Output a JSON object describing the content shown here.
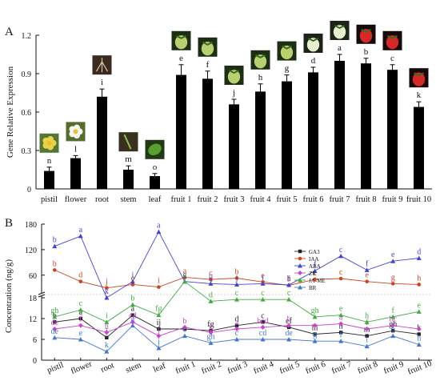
{
  "chart_data": [
    {
      "panel": "A",
      "type": "bar",
      "ylabel": "Gene Relative Expression",
      "ylim": [
        0,
        1.2
      ],
      "yticks": [
        "0",
        "0.3",
        "0.6",
        "0.9",
        "1.2"
      ],
      "categories": [
        "pistil",
        "flower",
        "root",
        "stem",
        "leaf",
        "fruit 1",
        "fruit 2",
        "fruit 3",
        "fruit 4",
        "fruit 5",
        "fruit 6",
        "fruit 7",
        "fruit 8",
        "fruit 9",
        "fruit 10"
      ],
      "values": [
        0.14,
        0.24,
        0.72,
        0.15,
        0.1,
        0.89,
        0.86,
        0.66,
        0.76,
        0.84,
        0.91,
        1.0,
        0.98,
        0.93,
        0.64
      ],
      "errors": [
        0.03,
        0.02,
        0.06,
        0.03,
        0.02,
        0.08,
        0.06,
        0.04,
        0.06,
        0.05,
        0.04,
        0.05,
        0.04,
        0.04,
        0.04
      ],
      "letters": [
        "n",
        "l",
        "i",
        "m",
        "o",
        "e",
        "f",
        "j",
        "h",
        "g",
        "d",
        "a",
        "b",
        "c",
        "k"
      ],
      "photo_icons": [
        "pistil-flower-icon",
        "white-flower-icon",
        "root-icon",
        "stem-icon",
        "leaf-icon",
        "green-fruit-icon",
        "green-fruit-icon",
        "green-fruit-icon",
        "green-fruit-icon",
        "green-fruit-icon",
        "white-fruit-icon",
        "white-fruit-icon",
        "red-fruit-icon",
        "red-fruit-icon",
        "red-fruit-icon"
      ]
    },
    {
      "panel": "B",
      "type": "line",
      "ylabel": "Concentration (ng/g)",
      "yticks_lower": [
        "0",
        "6",
        "12",
        "18"
      ],
      "yticks_upper": [
        "60",
        "120",
        "180"
      ],
      "axis_break": [
        18,
        20
      ],
      "categories": [
        "pistil",
        "flower",
        "root",
        "stem",
        "leaf",
        "fruit 1",
        "fruit 2",
        "fruit 3",
        "fruit 4",
        "fruit 5",
        "fruit 6",
        "fruit 7",
        "fruit 8",
        "fruit 9",
        "fruit 10"
      ],
      "legend_position": "top-right",
      "series": [
        {
          "name": "GA3",
          "color": "#222222",
          "marker": "square",
          "values": [
            11.0,
            12.0,
            6.5,
            13.0,
            9.0,
            9.0,
            8.5,
            10.0,
            11.0,
            9.5,
            7.5,
            8.0,
            7.0,
            8.5,
            7.5
          ],
          "letters": [
            "b",
            "a",
            "i",
            "a",
            "ij",
            "",
            "fg",
            "d",
            "c",
            "ef",
            "hi",
            "h",
            "m",
            "gh",
            "k"
          ]
        },
        {
          "name": "IAA",
          "color": "#cc4422",
          "marker": "circle",
          "values": [
            72,
            45,
            30,
            38,
            32,
            55,
            50,
            53,
            44,
            36,
            50,
            52,
            45,
            40,
            38
          ],
          "letters": [
            "b",
            "d",
            "j",
            "e",
            "i",
            "a",
            "c",
            "b",
            "e",
            "f",
            "c",
            "c",
            "e",
            "g",
            "h"
          ]
        },
        {
          "name": "ABA",
          "color": "#4444cc",
          "marker": "triangle",
          "values": [
            128,
            152,
            18,
            45,
            162,
            45,
            40,
            38,
            40,
            37,
            70,
            105,
            72,
            93,
            100
          ],
          "letters": [
            "b",
            "a",
            "k",
            "i",
            "a",
            "g",
            "ij",
            "j",
            "i",
            "h",
            "f",
            "c",
            "f",
            "e",
            "d"
          ]
        },
        {
          "name": "ZR",
          "color": "#cc44cc",
          "marker": "diamond",
          "values": [
            9.0,
            10.0,
            8.0,
            11.0,
            7.0,
            9.5,
            8.0,
            9.0,
            9.5,
            10.0,
            10.0,
            10.5,
            9.0,
            10.0,
            9.0
          ],
          "letters": [
            "de",
            "f",
            "h",
            "cd",
            "j",
            "b",
            "g",
            "a",
            "bcd",
            "b",
            "",
            "a",
            "f",
            "bc",
            ""
          ]
        },
        {
          "name": "JA-ME",
          "color": "#44aa44",
          "marker": "triangle",
          "values": [
            12.5,
            14.5,
            11.0,
            16.0,
            13.0,
            45,
            17.0,
            17.5,
            17.5,
            17.5,
            12.5,
            13.0,
            11.0,
            12.5,
            14.0
          ],
          "letters": [
            "gh",
            "c",
            "i",
            "b",
            "fg",
            "a",
            "d",
            "c",
            "c",
            "c",
            "gh",
            "e",
            "h",
            "f",
            "e"
          ]
        },
        {
          "name": "BR",
          "color": "#4477cc",
          "marker": "triangle",
          "values": [
            6.5,
            6.0,
            2.5,
            10.0,
            3.5,
            7.0,
            5.0,
            6.0,
            6.0,
            6.0,
            5.5,
            5.5,
            4.0,
            7.0,
            4.5
          ],
          "letters": [
            "de",
            "e",
            "k",
            "a",
            "j",
            "c",
            "gh",
            "c",
            "cd",
            "de",
            "g",
            "f",
            "i",
            "b",
            "h"
          ]
        }
      ]
    }
  ],
  "panel_labels": [
    "A",
    "B"
  ]
}
